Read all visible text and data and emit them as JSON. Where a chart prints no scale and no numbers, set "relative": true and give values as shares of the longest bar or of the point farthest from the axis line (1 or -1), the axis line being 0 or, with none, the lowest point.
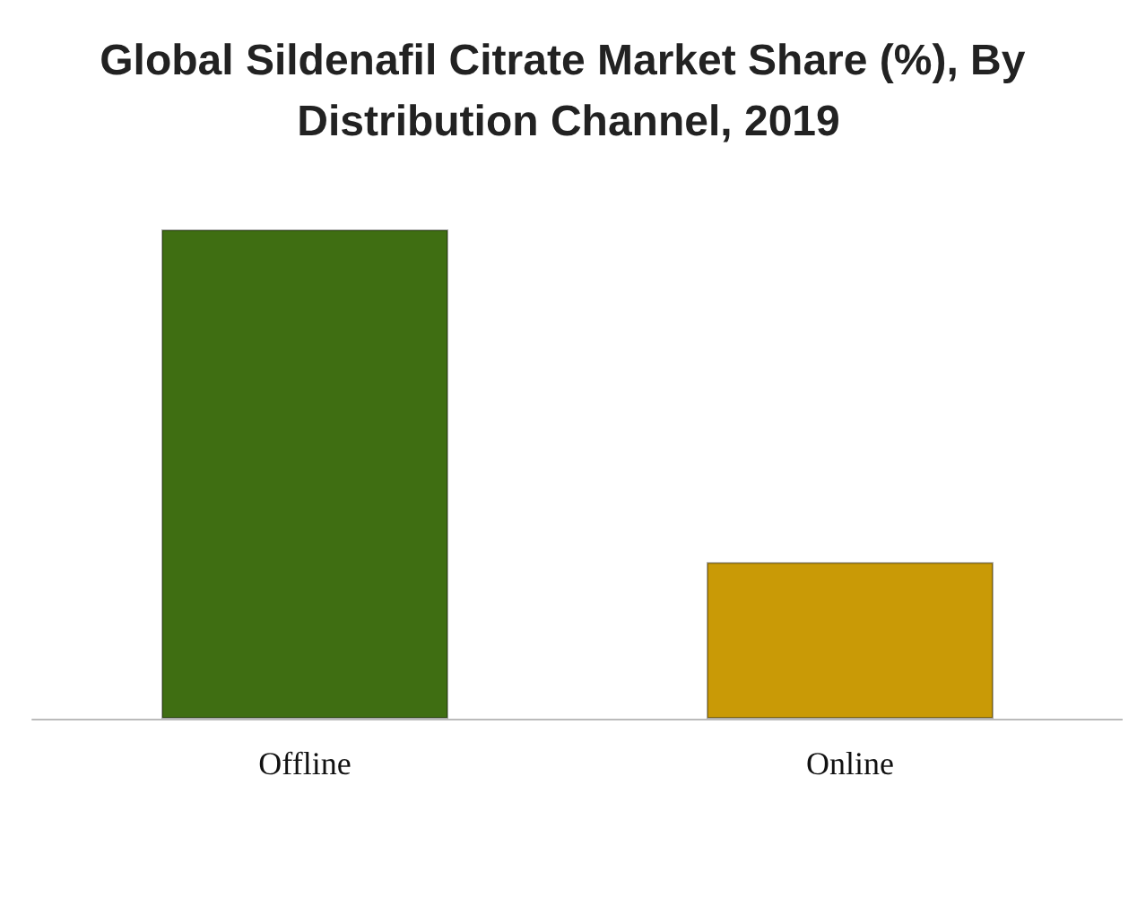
{
  "chart_data": {
    "type": "bar",
    "title": "Global Sildenafil Citrate Market Share (%), By Distribution Channel, 2019",
    "relative": true,
    "categories": [
      "Offline",
      "Online"
    ],
    "colors": [
      "#3f6e12",
      "#c99a06"
    ],
    "values": [
      1,
      0.32
    ]
  }
}
